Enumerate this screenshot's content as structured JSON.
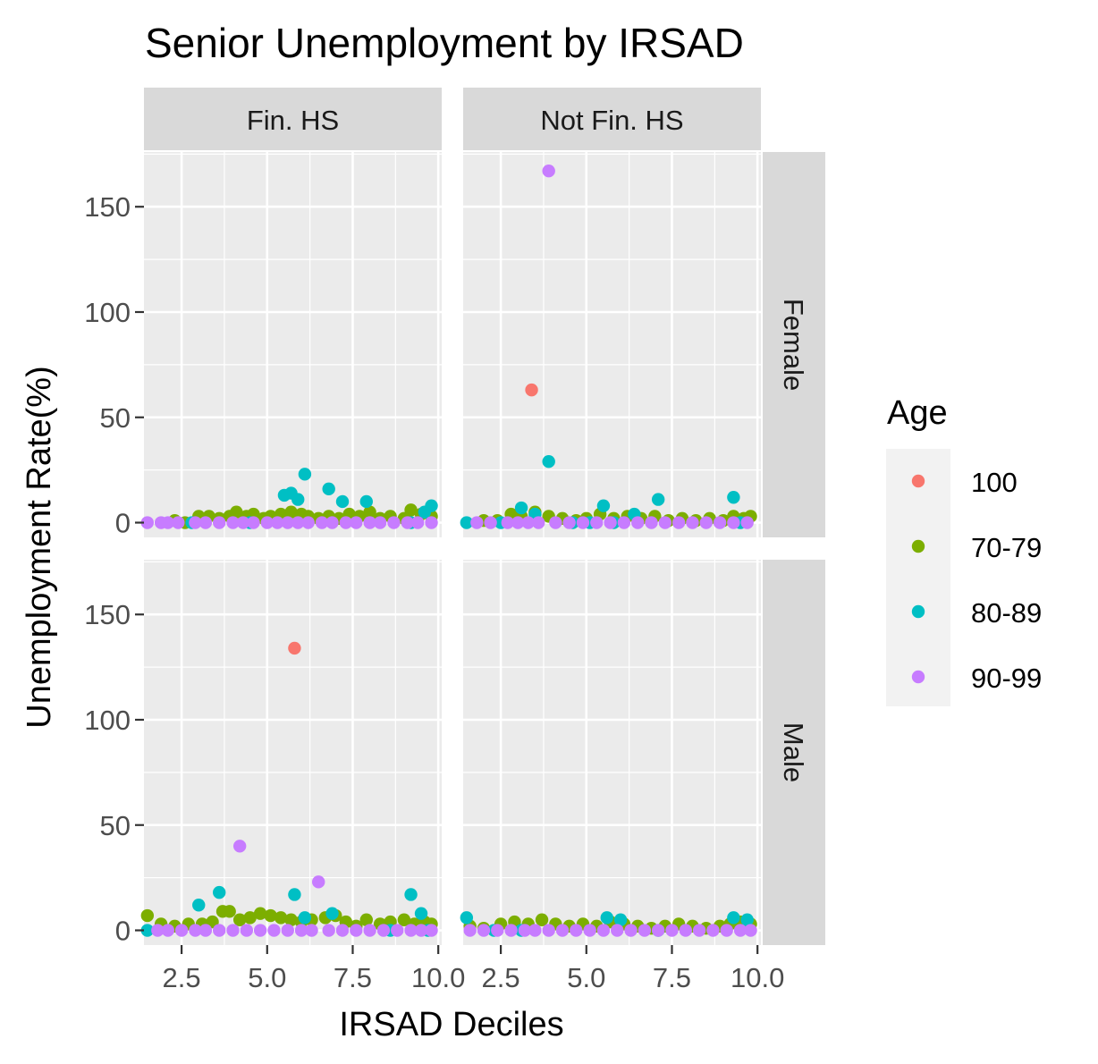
{
  "chart_data": {
    "type": "scatter",
    "title": "Senior Unemployment by IRSAD",
    "xlabel": "IRSAD Deciles",
    "ylabel": "Unemployment Rate(%)",
    "facet_cols": [
      "Fin. HS",
      "Not Fin. HS"
    ],
    "facet_rows": [
      "Female",
      "Male"
    ],
    "xlim": [
      1.4,
      10.1
    ],
    "ylim": [
      -7,
      176
    ],
    "x_ticks": [
      2.5,
      5.0,
      7.5,
      10.0
    ],
    "x_tick_labels": [
      "2.5",
      "5.0",
      "7.5",
      "10.0"
    ],
    "y_ticks": [
      0,
      50,
      100,
      150
    ],
    "y_tick_labels": [
      "0",
      "50",
      "100",
      "150"
    ],
    "grid": true,
    "legend": {
      "title": "Age",
      "placement": "right",
      "entries": [
        {
          "label": "100",
          "color": "#F8766D"
        },
        {
          "label": "70-79",
          "color": "#7CAE00"
        },
        {
          "label": "80-89",
          "color": "#00BFC4"
        },
        {
          "label": "90-99",
          "color": "#C77CFF"
        }
      ]
    },
    "panels": [
      {
        "col": "Fin. HS",
        "row": "Female",
        "series": [
          {
            "name": "100",
            "points": []
          },
          {
            "name": "70-79",
            "points": [
              [
                2.3,
                1
              ],
              [
                2.6,
                0
              ],
              [
                3.0,
                3
              ],
              [
                3.3,
                3
              ],
              [
                3.6,
                2
              ],
              [
                3.9,
                3
              ],
              [
                4.1,
                5
              ],
              [
                4.4,
                3
              ],
              [
                4.6,
                4
              ],
              [
                4.9,
                2
              ],
              [
                5.1,
                3
              ],
              [
                5.4,
                4
              ],
              [
                5.7,
                5
              ],
              [
                6.0,
                4
              ],
              [
                6.2,
                3
              ],
              [
                6.5,
                2
              ],
              [
                6.8,
                3
              ],
              [
                7.1,
                2
              ],
              [
                7.4,
                4
              ],
              [
                7.7,
                3
              ],
              [
                8.0,
                5
              ],
              [
                8.3,
                2
              ],
              [
                8.6,
                3
              ],
              [
                9.0,
                2
              ],
              [
                9.2,
                6
              ],
              [
                9.5,
                4
              ],
              [
                9.8,
                3
              ]
            ]
          },
          {
            "name": "80-89",
            "points": [
              [
                2.8,
                0
              ],
              [
                4.5,
                0
              ],
              [
                5.5,
                13
              ],
              [
                5.7,
                14
              ],
              [
                5.9,
                11
              ],
              [
                6.1,
                23
              ],
              [
                6.8,
                16
              ],
              [
                7.2,
                10
              ],
              [
                7.9,
                10
              ],
              [
                9.2,
                0
              ],
              [
                9.6,
                5
              ],
              [
                9.8,
                8
              ]
            ]
          },
          {
            "name": "90-99",
            "points": [
              [
                1.5,
                0
              ],
              [
                1.9,
                0
              ],
              [
                2.1,
                0
              ],
              [
                2.4,
                0
              ],
              [
                2.9,
                0
              ],
              [
                3.2,
                0
              ],
              [
                3.6,
                0
              ],
              [
                4.0,
                0
              ],
              [
                4.3,
                0
              ],
              [
                4.6,
                0
              ],
              [
                5.0,
                0
              ],
              [
                5.3,
                0
              ],
              [
                5.6,
                0
              ],
              [
                5.9,
                0
              ],
              [
                6.2,
                0
              ],
              [
                6.6,
                0
              ],
              [
                6.9,
                0
              ],
              [
                7.3,
                0
              ],
              [
                7.6,
                0
              ],
              [
                8.0,
                0
              ],
              [
                8.3,
                0
              ],
              [
                8.7,
                0
              ],
              [
                9.1,
                0
              ],
              [
                9.4,
                0
              ],
              [
                9.8,
                0
              ]
            ]
          }
        ]
      },
      {
        "col": "Not Fin. HS",
        "row": "Female",
        "series": [
          {
            "name": "100",
            "points": [
              [
                3.4,
                63
              ]
            ]
          },
          {
            "name": "70-79",
            "points": [
              [
                2.0,
                1
              ],
              [
                2.4,
                1
              ],
              [
                2.8,
                4
              ],
              [
                3.1,
                3
              ],
              [
                3.5,
                5
              ],
              [
                3.9,
                3
              ],
              [
                4.3,
                2
              ],
              [
                4.7,
                1
              ],
              [
                5.0,
                2
              ],
              [
                5.4,
                4
              ],
              [
                5.8,
                2
              ],
              [
                6.2,
                3
              ],
              [
                6.6,
                2
              ],
              [
                7.0,
                3
              ],
              [
                7.4,
                1
              ],
              [
                7.8,
                2
              ],
              [
                8.2,
                1
              ],
              [
                8.6,
                2
              ],
              [
                9.0,
                1
              ],
              [
                9.3,
                3
              ],
              [
                9.6,
                2
              ],
              [
                9.8,
                3
              ]
            ]
          },
          {
            "name": "80-89",
            "points": [
              [
                1.5,
                0
              ],
              [
                2.5,
                0
              ],
              [
                3.1,
                7
              ],
              [
                3.5,
                4
              ],
              [
                3.9,
                29
              ],
              [
                4.6,
                0
              ],
              [
                5.1,
                0
              ],
              [
                5.5,
                8
              ],
              [
                5.8,
                0
              ],
              [
                6.4,
                4
              ],
              [
                7.1,
                11
              ],
              [
                9.3,
                12
              ],
              [
                9.5,
                0
              ]
            ]
          },
          {
            "name": "90-99",
            "points": [
              [
                3.9,
                167
              ],
              [
                1.8,
                0
              ],
              [
                2.2,
                0
              ],
              [
                2.7,
                0
              ],
              [
                3.0,
                0
              ],
              [
                3.3,
                0
              ],
              [
                3.6,
                0
              ],
              [
                4.1,
                0
              ],
              [
                4.5,
                0
              ],
              [
                4.9,
                0
              ],
              [
                5.3,
                0
              ],
              [
                5.7,
                0
              ],
              [
                6.1,
                0
              ],
              [
                6.5,
                0
              ],
              [
                6.9,
                0
              ],
              [
                7.3,
                0
              ],
              [
                7.7,
                0
              ],
              [
                8.1,
                0
              ],
              [
                8.5,
                0
              ],
              [
                8.9,
                0
              ],
              [
                9.3,
                0
              ],
              [
                9.7,
                0
              ]
            ]
          }
        ]
      },
      {
        "col": "Fin. HS",
        "row": "Male",
        "series": [
          {
            "name": "100",
            "points": [
              [
                5.8,
                134
              ]
            ]
          },
          {
            "name": "70-79",
            "points": [
              [
                1.5,
                7
              ],
              [
                1.9,
                3
              ],
              [
                2.3,
                2
              ],
              [
                2.7,
                3
              ],
              [
                3.1,
                3
              ],
              [
                3.4,
                4
              ],
              [
                3.7,
                9
              ],
              [
                3.9,
                9
              ],
              [
                4.2,
                5
              ],
              [
                4.5,
                6
              ],
              [
                4.8,
                8
              ],
              [
                5.1,
                7
              ],
              [
                5.4,
                6
              ],
              [
                5.7,
                5
              ],
              [
                6.0,
                4
              ],
              [
                6.3,
                5
              ],
              [
                6.7,
                6
              ],
              [
                7.0,
                7
              ],
              [
                7.3,
                4
              ],
              [
                7.6,
                2
              ],
              [
                7.9,
                5
              ],
              [
                8.3,
                3
              ],
              [
                8.6,
                4
              ],
              [
                9.0,
                5
              ],
              [
                9.3,
                3
              ],
              [
                9.6,
                4
              ],
              [
                9.8,
                3
              ]
            ]
          },
          {
            "name": "80-89",
            "points": [
              [
                1.5,
                0
              ],
              [
                3.0,
                12
              ],
              [
                3.6,
                18
              ],
              [
                5.8,
                17
              ],
              [
                6.1,
                6
              ],
              [
                6.9,
                8
              ],
              [
                8.6,
                0
              ],
              [
                9.2,
                17
              ],
              [
                9.5,
                8
              ],
              [
                9.7,
                0
              ]
            ]
          },
          {
            "name": "90-99",
            "points": [
              [
                4.2,
                40
              ],
              [
                6.5,
                23
              ],
              [
                1.8,
                0
              ],
              [
                2.1,
                0
              ],
              [
                2.5,
                0
              ],
              [
                2.9,
                0
              ],
              [
                3.2,
                0
              ],
              [
                3.6,
                0
              ],
              [
                4.0,
                0
              ],
              [
                4.4,
                0
              ],
              [
                4.8,
                0
              ],
              [
                5.2,
                0
              ],
              [
                5.6,
                0
              ],
              [
                6.0,
                0
              ],
              [
                6.3,
                0
              ],
              [
                6.8,
                0
              ],
              [
                7.2,
                0
              ],
              [
                7.6,
                0
              ],
              [
                8.0,
                0
              ],
              [
                8.4,
                0
              ],
              [
                8.8,
                0
              ],
              [
                9.2,
                0
              ],
              [
                9.5,
                0
              ],
              [
                9.8,
                0
              ]
            ]
          }
        ]
      },
      {
        "col": "Not Fin. HS",
        "row": "Male",
        "series": [
          {
            "name": "100",
            "points": []
          },
          {
            "name": "70-79",
            "points": [
              [
                1.6,
                2
              ],
              [
                2.0,
                1
              ],
              [
                2.5,
                3
              ],
              [
                2.9,
                4
              ],
              [
                3.3,
                3
              ],
              [
                3.7,
                5
              ],
              [
                4.1,
                3
              ],
              [
                4.5,
                2
              ],
              [
                4.9,
                3
              ],
              [
                5.3,
                2
              ],
              [
                5.7,
                4
              ],
              [
                6.1,
                3
              ],
              [
                6.5,
                2
              ],
              [
                6.9,
                1
              ],
              [
                7.3,
                2
              ],
              [
                7.7,
                3
              ],
              [
                8.1,
                2
              ],
              [
                8.5,
                1
              ],
              [
                8.9,
                2
              ],
              [
                9.2,
                3
              ],
              [
                9.5,
                4
              ],
              [
                9.8,
                3
              ]
            ]
          },
          {
            "name": "80-89",
            "points": [
              [
                1.5,
                6
              ],
              [
                2.3,
                0
              ],
              [
                3.1,
                0
              ],
              [
                5.6,
                6
              ],
              [
                6.0,
                5
              ],
              [
                7.1,
                0
              ],
              [
                9.3,
                6
              ],
              [
                9.7,
                5
              ]
            ]
          },
          {
            "name": "90-99",
            "points": [
              [
                1.6,
                0
              ],
              [
                2.0,
                0
              ],
              [
                2.4,
                0
              ],
              [
                2.8,
                0
              ],
              [
                3.2,
                0
              ],
              [
                3.5,
                0
              ],
              [
                3.9,
                0
              ],
              [
                4.3,
                0
              ],
              [
                4.7,
                0
              ],
              [
                5.1,
                0
              ],
              [
                5.5,
                0
              ],
              [
                5.9,
                0
              ],
              [
                6.3,
                0
              ],
              [
                6.7,
                0
              ],
              [
                7.1,
                0
              ],
              [
                7.5,
                0
              ],
              [
                7.9,
                0
              ],
              [
                8.3,
                0
              ],
              [
                8.7,
                0
              ],
              [
                9.1,
                0
              ],
              [
                9.5,
                0
              ],
              [
                9.8,
                0
              ]
            ]
          }
        ]
      }
    ]
  }
}
